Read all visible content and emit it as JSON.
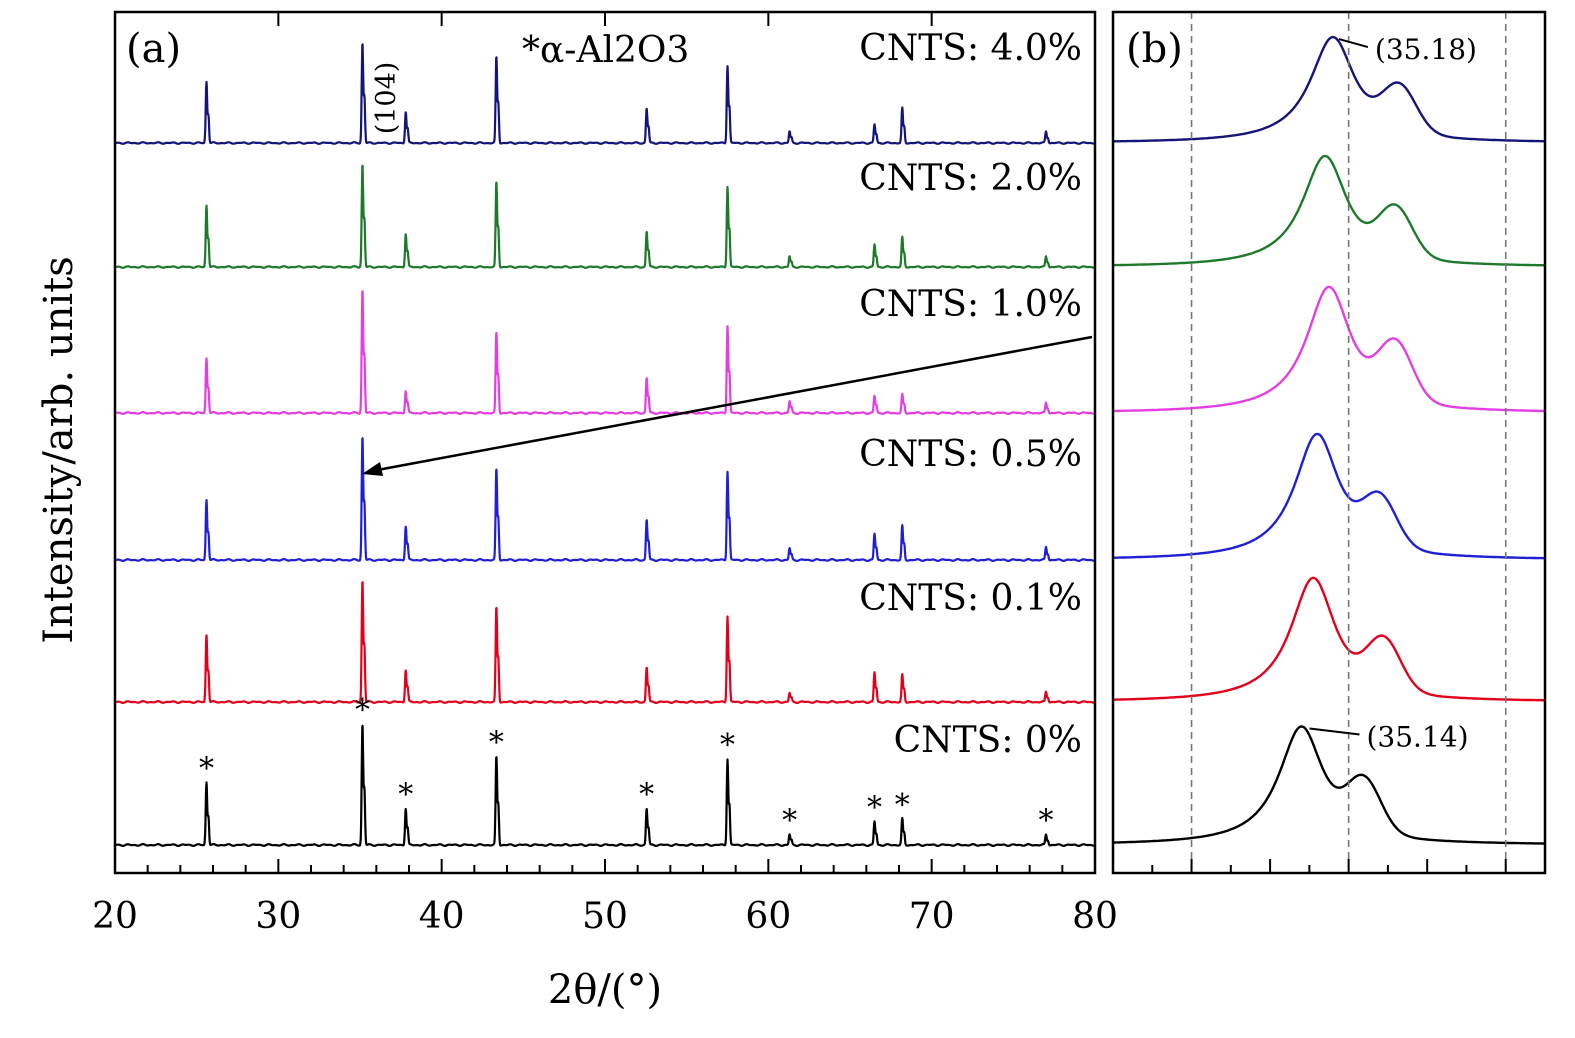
{
  "chart_data": {
    "type": "line",
    "colors": {
      "0%": "#000000",
      "0.1%": "#e3001b",
      "0.5%": "#1f1fd6",
      "1.0%": "#e43ee3",
      "2.0%": "#1e7a2a",
      "4.0%": "#141479"
    },
    "panels": [
      {
        "tag": "(a)",
        "xlabel": "2θ/(°)",
        "ylabel": "Intensity/arb. units",
        "xlim": [
          20,
          80
        ],
        "xticks": [
          "20",
          "30",
          "40",
          "50",
          "60",
          "70",
          "80"
        ],
        "y_ticks_shown": false,
        "legend_note": "*α-Al2O3",
        "series_order_bottom_to_top": [
          "0%",
          "0.1%",
          "0.5%",
          "1.0%",
          "2.0%",
          "4.0%"
        ],
        "series_labels": {
          "0%": "CNTS: 0%",
          "0.1%": "CNTS: 0.1%",
          "0.5%": "CNTS: 0.5%",
          "1.0%": "CNTS: 1.0%",
          "2.0%": "CNTS: 2.0%",
          "4.0%": "CNTS: 4.0%"
        },
        "peak_annotation": "(104)",
        "alpha_al2o3_marked_peaks_2theta": [
          25.6,
          35.15,
          37.8,
          43.35,
          52.55,
          57.5,
          61.3,
          66.5,
          68.2,
          77.0
        ],
        "peaks": [
          {
            "x": 25.6,
            "h": {
              "0%": 0.48,
              "0.1%": 0.52,
              "0.5%": 0.46,
              "1.0%": 0.42,
              "2.0%": 0.52,
              "4.0%": 0.53
            }
          },
          {
            "x": 35.15,
            "h": {
              "0%": 0.93,
              "0.1%": 0.95,
              "0.5%": 0.95,
              "1.0%": 0.95,
              "2.0%": 0.87,
              "4.0%": 0.87
            }
          },
          {
            "x": 37.8,
            "h": {
              "0%": 0.28,
              "0.1%": 0.25,
              "0.5%": 0.26,
              "1.0%": 0.17,
              "2.0%": 0.28,
              "4.0%": 0.27
            }
          },
          {
            "x": 43.35,
            "h": {
              "0%": 0.68,
              "0.1%": 0.74,
              "0.5%": 0.7,
              "1.0%": 0.62,
              "2.0%": 0.72,
              "4.0%": 0.75
            }
          },
          {
            "x": 52.55,
            "h": {
              "0%": 0.28,
              "0.1%": 0.27,
              "0.5%": 0.31,
              "1.0%": 0.27,
              "2.0%": 0.3,
              "4.0%": 0.3
            }
          },
          {
            "x": 57.5,
            "h": {
              "0%": 0.66,
              "0.1%": 0.67,
              "0.5%": 0.68,
              "1.0%": 0.67,
              "2.0%": 0.68,
              "4.0%": 0.67
            }
          },
          {
            "x": 61.3,
            "h": {
              "0%": 0.08,
              "0.1%": 0.07,
              "0.5%": 0.09,
              "1.0%": 0.09,
              "2.0%": 0.09,
              "4.0%": 0.1
            }
          },
          {
            "x": 66.5,
            "h": {
              "0%": 0.18,
              "0.1%": 0.23,
              "0.5%": 0.2,
              "1.0%": 0.13,
              "2.0%": 0.19,
              "4.0%": 0.16
            }
          },
          {
            "x": 68.2,
            "h": {
              "0%": 0.2,
              "0.1%": 0.21,
              "0.5%": 0.26,
              "1.0%": 0.14,
              "2.0%": 0.25,
              "4.0%": 0.3
            }
          },
          {
            "x": 77.0,
            "h": {
              "0%": 0.08,
              "0.1%": 0.08,
              "0.5%": 0.1,
              "1.0%": 0.08,
              "2.0%": 0.09,
              "4.0%": 0.1
            }
          }
        ]
      },
      {
        "tag": "(b)",
        "description_of_axes": "zoom of the (104) peak; no tick labels printed",
        "xlim": [
          34.9,
          35.45
        ],
        "dashed_reference_lines_x": [
          35.0,
          35.2,
          35.4
        ],
        "annotations": [
          {
            "series": "4.0%",
            "text": "(35.18)"
          },
          {
            "series": "0%",
            "text": "(35.14)"
          }
        ],
        "series": [
          {
            "name": "0%",
            "main_peak_x": 35.14,
            "main_peak_h": 0.94,
            "shoulder_x": 35.22,
            "shoulder_h": 0.47,
            "valley_x": 35.2,
            "valley_h": 0.38
          },
          {
            "name": "0.1%",
            "main_peak_x": 35.155,
            "main_peak_h": 1.0,
            "shoulder_x": 35.245,
            "shoulder_h": 0.47,
            "valley_x": 35.2,
            "valley_h": 0.33
          },
          {
            "name": "0.5%",
            "main_peak_x": 35.16,
            "main_peak_h": 1.0,
            "shoulder_x": 35.24,
            "shoulder_h": 0.44,
            "valley_x": 35.2,
            "valley_h": 0.3
          },
          {
            "name": "1.0%",
            "main_peak_x": 35.175,
            "main_peak_h": 1.0,
            "shoulder_x": 35.26,
            "shoulder_h": 0.52,
            "valley_x": 35.215,
            "valley_h": 0.3
          },
          {
            "name": "2.0%",
            "main_peak_x": 35.17,
            "main_peak_h": 0.97,
            "shoulder_x": 35.26,
            "shoulder_h": 0.49,
            "valley_x": 35.22,
            "valley_h": 0.33
          },
          {
            "name": "4.0%",
            "main_peak_x": 35.18,
            "main_peak_h": 0.95,
            "shoulder_x": 35.265,
            "shoulder_h": 0.47,
            "valley_x": 35.22,
            "valley_h": 0.33
          }
        ]
      }
    ]
  }
}
